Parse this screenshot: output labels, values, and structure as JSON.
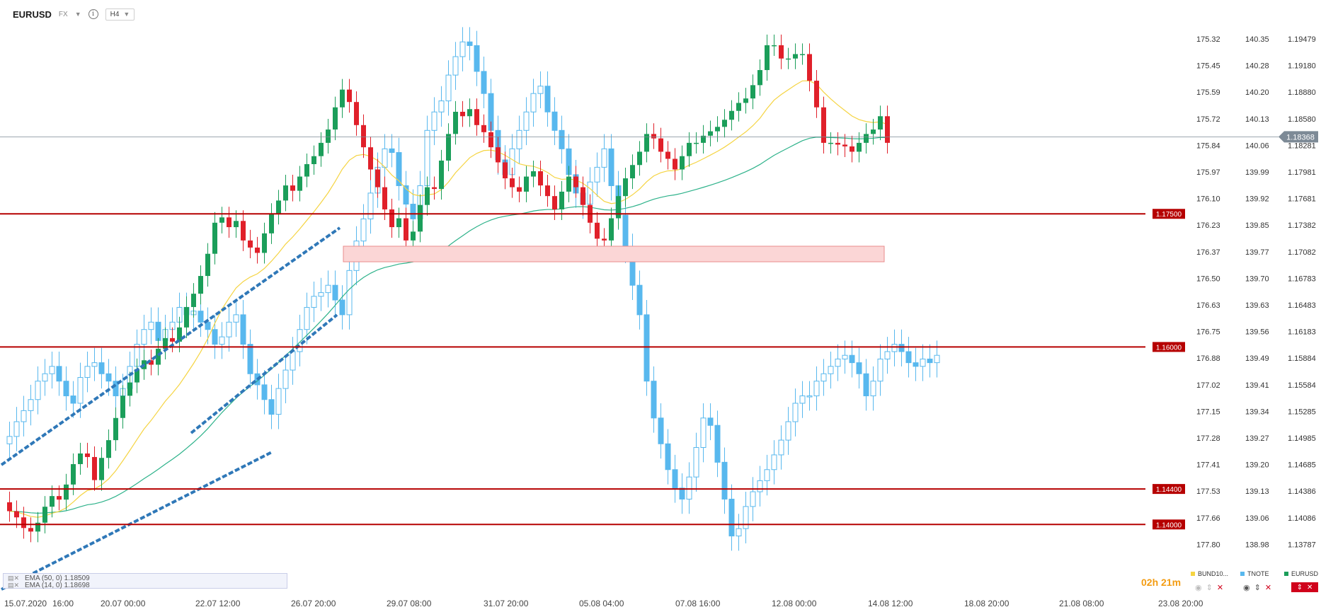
{
  "header": {
    "symbol": "EURUSD",
    "market": "FX",
    "info_icon": "i",
    "timeframe": "H4"
  },
  "colors": {
    "bull": "#1b9e5a",
    "bear": "#e0202a",
    "blue_candle": "#58b8ee",
    "ema_fast": "#f5d442",
    "ema_slow": "#2db28a",
    "level": "#b60000",
    "trend": "#2f78b8",
    "zone_fill": "#fbd6d6",
    "current_price_tag": "#7d8a96"
  },
  "price_axes": {
    "col1": [
      "175.32",
      "175.45",
      "175.59",
      "175.72",
      "175.84",
      "175.97",
      "176.10",
      "176.23",
      "176.37",
      "176.50",
      "176.63",
      "176.75",
      "176.88",
      "177.02",
      "177.15",
      "177.28",
      "177.41",
      "177.53",
      "177.66",
      "177.80"
    ],
    "col2": [
      "140.35",
      "140.28",
      "140.20",
      "140.13",
      "140.06",
      "139.99",
      "139.92",
      "139.85",
      "139.77",
      "139.70",
      "139.63",
      "139.56",
      "139.49",
      "139.41",
      "139.34",
      "139.27",
      "139.20",
      "139.13",
      "139.06",
      "138.98"
    ],
    "col3": [
      "1.19479",
      "1.19180",
      "1.18880",
      "1.18580",
      "1.18281",
      "1.17981",
      "1.17681",
      "1.17382",
      "1.17082",
      "1.16783",
      "1.16483",
      "1.16183",
      "1.15884",
      "1.15584",
      "1.15285",
      "1.14985",
      "1.14685",
      "1.14386",
      "1.14086",
      "1.13787"
    ]
  },
  "levels": [
    {
      "label": "1.17500"
    },
    {
      "label": "1.16000"
    },
    {
      "label": "1.14400"
    },
    {
      "label": "1.14000"
    }
  ],
  "current_price": "1.18368",
  "time_axis": [
    "15.07.2020",
    "16:00",
    "20.07 00:00",
    "22.07 12:00",
    "26.07 20:00",
    "29.07 08:00",
    "31.07 20:00",
    "05.08 04:00",
    "07.08 16:00",
    "12.08 00:00",
    "14.08 12:00",
    "18.08 20:00",
    "21.08 08:00",
    "23.08 20:00"
  ],
  "indicators": [
    {
      "label": "EMA (50, 0) 1.18509"
    },
    {
      "label": "EMA (14, 0) 1.18698"
    }
  ],
  "footer": {
    "bund": "BUND10...",
    "tnote": "TNOTE",
    "eurusd": "EURUSD",
    "timer": "02h 21m"
  },
  "chart_data": {
    "type": "candlestick",
    "symbol": "EURUSD",
    "timeframe": "H4",
    "series": [
      {
        "name": "EURUSD",
        "color": "bull/bear",
        "values": [
          1.1415,
          1.1408,
          1.1396,
          1.1392,
          1.1402,
          1.142,
          1.1432,
          1.1428,
          1.1445,
          1.1468,
          1.148,
          1.1476,
          1.145,
          1.1475,
          1.1495,
          1.152,
          1.1545,
          1.156,
          1.1575,
          1.1585,
          1.158,
          1.1598,
          1.161,
          1.1606,
          1.1622,
          1.1645,
          1.166,
          1.168,
          1.1705,
          1.174,
          1.1746,
          1.1735,
          1.1742,
          1.172,
          1.1712,
          1.1706,
          1.1728,
          1.175,
          1.1765,
          1.1782,
          1.1776,
          1.1792,
          1.1806,
          1.1815,
          1.183,
          1.1845,
          1.187,
          1.189,
          1.1876,
          1.185,
          1.1825,
          1.18,
          1.178,
          1.1755,
          1.1735,
          1.1745,
          1.172,
          1.173,
          1.176,
          1.178,
          1.1778,
          1.181,
          1.184,
          1.1865,
          1.186,
          1.1868,
          1.185,
          1.1842,
          1.1825,
          1.1808,
          1.179,
          1.178,
          1.1775,
          1.1792,
          1.1798,
          1.1782,
          1.177,
          1.1755,
          1.1775,
          1.1792,
          1.178,
          1.176,
          1.174,
          1.1722,
          1.172,
          1.1745,
          1.177,
          1.179,
          1.1805,
          1.182,
          1.184,
          1.1835,
          1.182,
          1.1812,
          1.18,
          1.1815,
          1.183,
          1.183,
          1.1838,
          1.1843,
          1.1848,
          1.1856,
          1.1866,
          1.1875,
          1.188,
          1.1895,
          1.1912,
          1.194,
          1.194,
          1.1925,
          1.1925,
          1.193,
          1.193,
          1.19,
          1.187,
          1.183,
          1.183,
          1.1828,
          1.1826,
          1.182,
          1.183,
          1.184,
          1.1845,
          1.186,
          1.183
        ]
      },
      {
        "name": "TNOTE",
        "color": "blue_candle",
        "values": [
          139.27,
          139.31,
          139.34,
          139.37,
          139.42,
          139.44,
          139.46,
          139.42,
          139.38,
          139.36,
          139.43,
          139.46,
          139.47,
          139.44,
          139.42,
          139.38,
          139.4,
          139.46,
          139.52,
          139.56,
          139.58,
          139.53,
          139.56,
          139.58,
          139.62,
          139.6,
          139.61,
          139.58,
          139.56,
          139.52,
          139.54,
          139.58,
          139.6,
          139.52,
          139.44,
          139.41,
          139.37,
          139.33,
          139.4,
          139.45,
          139.5,
          139.56,
          139.62,
          139.65,
          139.66,
          139.68,
          139.64,
          139.6,
          139.72,
          139.8,
          139.86,
          139.93,
          140.0,
          140.05,
          140.04,
          139.95,
          139.9,
          139.86,
          139.95,
          140.1,
          140.15,
          140.18,
          140.25,
          140.3,
          140.34,
          140.33,
          140.26,
          140.2,
          140.1,
          140.02,
          139.98,
          140.05,
          140.1,
          140.15,
          140.2,
          140.22,
          140.15,
          140.1,
          140.05,
          139.98,
          139.93,
          139.9,
          139.96,
          140.0,
          140.05,
          139.95,
          139.87,
          139.78,
          139.68,
          139.6,
          139.42,
          139.32,
          139.25,
          139.18,
          139.13,
          139.1,
          139.16,
          139.24,
          139.32,
          139.3,
          139.2,
          139.1,
          139.0,
          139.02,
          139.08,
          139.12,
          139.15,
          139.18,
          139.22,
          139.26,
          139.31,
          139.36,
          139.38,
          139.38,
          139.42,
          139.44,
          139.46,
          139.48,
          139.49,
          139.47,
          139.44,
          139.38,
          139.42,
          139.48,
          139.5,
          139.52,
          139.5,
          139.47,
          139.46,
          139.48,
          139.47,
          139.49
        ]
      }
    ],
    "yaxes": [
      {
        "name": "BUND10",
        "range": [
          175.32,
          177.8
        ],
        "inverted": true
      },
      {
        "name": "TNOTE",
        "range": [
          138.98,
          140.35
        ]
      },
      {
        "name": "EURUSD",
        "range": [
          1.13787,
          1.19479
        ]
      }
    ],
    "ema50_last": 1.18509,
    "ema14_last": 1.18698,
    "horizontal_levels": [
      1.175,
      1.16,
      1.144,
      1.14
    ],
    "grid": false
  }
}
